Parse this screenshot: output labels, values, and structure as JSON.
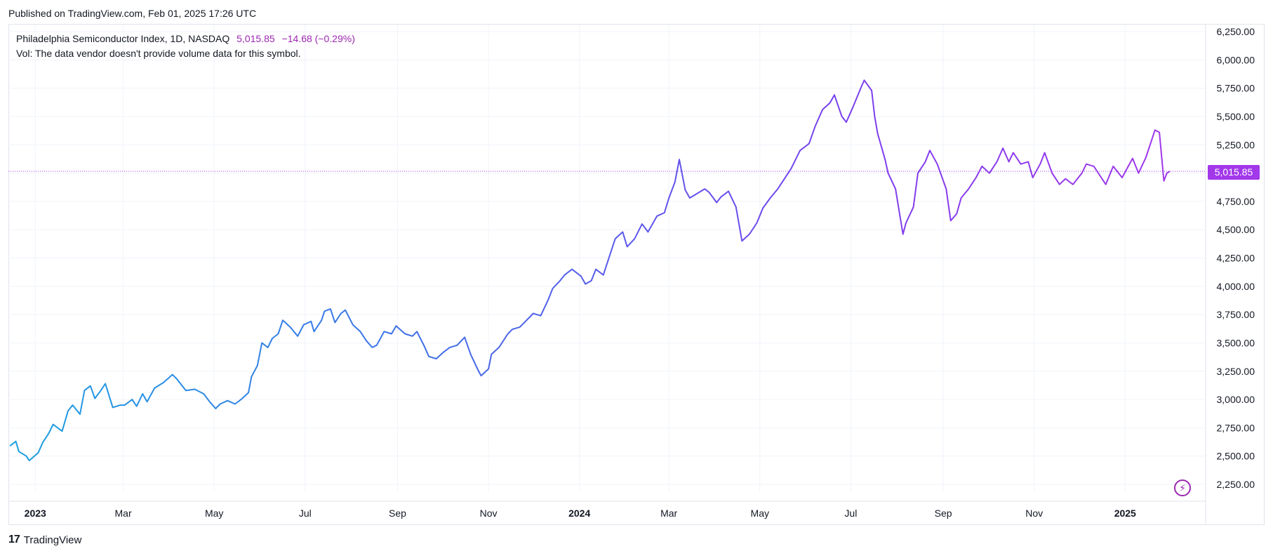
{
  "header": {
    "published": "Published on TradingView.com, Feb 01, 2025 17:26 UTC"
  },
  "legend": {
    "symbol": "Philadelphia Semiconductor Index, 1D, NASDAQ",
    "price": "5,015.85",
    "change": "−14.68 (−0.29%)",
    "vol": "Vol: The data vendor doesn't provide volume data for this symbol."
  },
  "price_badge": "5,015.85",
  "footer": {
    "logo": "17",
    "brand": "TradingView"
  },
  "icons": {
    "lightning": "lightning-icon"
  },
  "colors": {
    "line_start": "#1ca0e0",
    "line_mid": "#3f6fe8",
    "line_end": "#a238ea",
    "grid": "#f0f3fa",
    "last_price": "#a238ea"
  },
  "chart_data": {
    "type": "line",
    "title": "",
    "xlabel": "",
    "ylabel": "",
    "ylim": [
      2100,
      6350
    ],
    "y_ticks": [
      "6,250.00",
      "6,000.00",
      "5,750.00",
      "5,500.00",
      "5,250.00",
      "5,000.00",
      "4,750.00",
      "4,500.00",
      "4,250.00",
      "4,000.00",
      "3,750.00",
      "3,500.00",
      "3,250.00",
      "3,000.00",
      "2,750.00",
      "2,500.00",
      "2,250.00"
    ],
    "y_tick_values": [
      6250,
      6000,
      5750,
      5500,
      5250,
      5000,
      4750,
      4500,
      4250,
      4000,
      3750,
      3500,
      3250,
      3000,
      2750,
      2500,
      2250
    ],
    "x_ticks": [
      {
        "label": "2023",
        "date": "2023-01-01",
        "bold": true
      },
      {
        "label": "Mar",
        "date": "2023-03-01",
        "bold": false
      },
      {
        "label": "May",
        "date": "2023-05-01",
        "bold": false
      },
      {
        "label": "Jul",
        "date": "2023-07-01",
        "bold": false
      },
      {
        "label": "Sep",
        "date": "2023-09-01",
        "bold": false
      },
      {
        "label": "Nov",
        "date": "2023-11-01",
        "bold": false
      },
      {
        "label": "2024",
        "date": "2024-01-01",
        "bold": true
      },
      {
        "label": "Mar",
        "date": "2024-03-01",
        "bold": false
      },
      {
        "label": "May",
        "date": "2024-05-01",
        "bold": false
      },
      {
        "label": "Jul",
        "date": "2024-07-01",
        "bold": false
      },
      {
        "label": "Sep",
        "date": "2024-09-01",
        "bold": false
      },
      {
        "label": "Nov",
        "date": "2024-11-01",
        "bold": false
      },
      {
        "label": "2025",
        "date": "2025-01-01",
        "bold": true
      }
    ],
    "last_price": 5015.85,
    "series": [
      {
        "name": "Philadelphia Semiconductor Index",
        "points": [
          [
            "2022-12-15",
            2590
          ],
          [
            "2022-12-19",
            2630
          ],
          [
            "2022-12-21",
            2540
          ],
          [
            "2022-12-26",
            2500
          ],
          [
            "2022-12-28",
            2460
          ],
          [
            "2023-01-03",
            2530
          ],
          [
            "2023-01-06",
            2620
          ],
          [
            "2023-01-10",
            2700
          ],
          [
            "2023-01-13",
            2780
          ],
          [
            "2023-01-19",
            2720
          ],
          [
            "2023-01-23",
            2900
          ],
          [
            "2023-01-26",
            2950
          ],
          [
            "2023-01-31",
            2870
          ],
          [
            "2023-02-03",
            3080
          ],
          [
            "2023-02-07",
            3120
          ],
          [
            "2023-02-10",
            3010
          ],
          [
            "2023-02-14",
            3080
          ],
          [
            "2023-02-17",
            3140
          ],
          [
            "2023-02-22",
            2930
          ],
          [
            "2023-02-27",
            2950
          ],
          [
            "2023-03-02",
            2950
          ],
          [
            "2023-03-07",
            3000
          ],
          [
            "2023-03-10",
            2940
          ],
          [
            "2023-03-14",
            3050
          ],
          [
            "2023-03-17",
            2980
          ],
          [
            "2023-03-22",
            3100
          ],
          [
            "2023-03-28",
            3150
          ],
          [
            "2023-04-03",
            3220
          ],
          [
            "2023-04-06",
            3180
          ],
          [
            "2023-04-12",
            3080
          ],
          [
            "2023-04-18",
            3090
          ],
          [
            "2023-04-24",
            3050
          ],
          [
            "2023-04-28",
            2980
          ],
          [
            "2023-05-02",
            2920
          ],
          [
            "2023-05-05",
            2960
          ],
          [
            "2023-05-10",
            2990
          ],
          [
            "2023-05-15",
            2960
          ],
          [
            "2023-05-19",
            3000
          ],
          [
            "2023-05-24",
            3060
          ],
          [
            "2023-05-26",
            3200
          ],
          [
            "2023-05-30",
            3300
          ],
          [
            "2023-06-02",
            3500
          ],
          [
            "2023-06-06",
            3460
          ],
          [
            "2023-06-09",
            3540
          ],
          [
            "2023-06-13",
            3580
          ],
          [
            "2023-06-16",
            3700
          ],
          [
            "2023-06-21",
            3640
          ],
          [
            "2023-06-26",
            3560
          ],
          [
            "2023-06-30",
            3660
          ],
          [
            "2023-07-05",
            3690
          ],
          [
            "2023-07-07",
            3600
          ],
          [
            "2023-07-12",
            3700
          ],
          [
            "2023-07-14",
            3780
          ],
          [
            "2023-07-18",
            3800
          ],
          [
            "2023-07-21",
            3680
          ],
          [
            "2023-07-25",
            3760
          ],
          [
            "2023-07-28",
            3790
          ],
          [
            "2023-08-02",
            3660
          ],
          [
            "2023-08-07",
            3600
          ],
          [
            "2023-08-11",
            3520
          ],
          [
            "2023-08-15",
            3460
          ],
          [
            "2023-08-18",
            3480
          ],
          [
            "2023-08-23",
            3600
          ],
          [
            "2023-08-28",
            3580
          ],
          [
            "2023-08-31",
            3650
          ],
          [
            "2023-09-06",
            3580
          ],
          [
            "2023-09-11",
            3560
          ],
          [
            "2023-09-14",
            3600
          ],
          [
            "2023-09-19",
            3470
          ],
          [
            "2023-09-22",
            3380
          ],
          [
            "2023-09-27",
            3360
          ],
          [
            "2023-10-02",
            3420
          ],
          [
            "2023-10-06",
            3460
          ],
          [
            "2023-10-11",
            3480
          ],
          [
            "2023-10-16",
            3550
          ],
          [
            "2023-10-20",
            3400
          ],
          [
            "2023-10-25",
            3260
          ],
          [
            "2023-10-27",
            3210
          ],
          [
            "2023-11-01",
            3270
          ],
          [
            "2023-11-03",
            3400
          ],
          [
            "2023-11-08",
            3460
          ],
          [
            "2023-11-14",
            3580
          ],
          [
            "2023-11-17",
            3620
          ],
          [
            "2023-11-22",
            3640
          ],
          [
            "2023-11-28",
            3720
          ],
          [
            "2023-12-01",
            3760
          ],
          [
            "2023-12-06",
            3740
          ],
          [
            "2023-12-11",
            3880
          ],
          [
            "2023-12-14",
            3980
          ],
          [
            "2023-12-19",
            4050
          ],
          [
            "2023-12-22",
            4100
          ],
          [
            "2023-12-27",
            4150
          ],
          [
            "2024-01-02",
            4090
          ],
          [
            "2024-01-05",
            4020
          ],
          [
            "2024-01-09",
            4050
          ],
          [
            "2024-01-12",
            4150
          ],
          [
            "2024-01-17",
            4100
          ],
          [
            "2024-01-22",
            4300
          ],
          [
            "2024-01-25",
            4420
          ],
          [
            "2024-01-30",
            4480
          ],
          [
            "2024-02-02",
            4350
          ],
          [
            "2024-02-07",
            4420
          ],
          [
            "2024-02-12",
            4550
          ],
          [
            "2024-02-16",
            4480
          ],
          [
            "2024-02-22",
            4620
          ],
          [
            "2024-02-27",
            4650
          ],
          [
            "2024-03-01",
            4780
          ],
          [
            "2024-03-05",
            4920
          ],
          [
            "2024-03-08",
            5120
          ],
          [
            "2024-03-12",
            4850
          ],
          [
            "2024-03-15",
            4780
          ],
          [
            "2024-03-20",
            4820
          ],
          [
            "2024-03-25",
            4860
          ],
          [
            "2024-03-28",
            4830
          ],
          [
            "2024-04-02",
            4740
          ],
          [
            "2024-04-05",
            4790
          ],
          [
            "2024-04-10",
            4840
          ],
          [
            "2024-04-15",
            4700
          ],
          [
            "2024-04-19",
            4400
          ],
          [
            "2024-04-24",
            4460
          ],
          [
            "2024-04-29",
            4560
          ],
          [
            "2024-05-03",
            4690
          ],
          [
            "2024-05-08",
            4780
          ],
          [
            "2024-05-13",
            4860
          ],
          [
            "2024-05-17",
            4940
          ],
          [
            "2024-05-22",
            5040
          ],
          [
            "2024-05-28",
            5200
          ],
          [
            "2024-06-03",
            5260
          ],
          [
            "2024-06-07",
            5410
          ],
          [
            "2024-06-12",
            5560
          ],
          [
            "2024-06-17",
            5620
          ],
          [
            "2024-06-20",
            5690
          ],
          [
            "2024-06-25",
            5500
          ],
          [
            "2024-06-28",
            5450
          ],
          [
            "2024-07-03",
            5600
          ],
          [
            "2024-07-08",
            5760
          ],
          [
            "2024-07-10",
            5820
          ],
          [
            "2024-07-15",
            5730
          ],
          [
            "2024-07-17",
            5500
          ],
          [
            "2024-07-19",
            5350
          ],
          [
            "2024-07-24",
            5120
          ],
          [
            "2024-07-26",
            5000
          ],
          [
            "2024-07-31",
            4860
          ],
          [
            "2024-08-05",
            4460
          ],
          [
            "2024-08-07",
            4560
          ],
          [
            "2024-08-12",
            4700
          ],
          [
            "2024-08-15",
            5000
          ],
          [
            "2024-08-20",
            5100
          ],
          [
            "2024-08-23",
            5200
          ],
          [
            "2024-08-28",
            5080
          ],
          [
            "2024-09-03",
            4860
          ],
          [
            "2024-09-06",
            4580
          ],
          [
            "2024-09-10",
            4640
          ],
          [
            "2024-09-13",
            4780
          ],
          [
            "2024-09-18",
            4860
          ],
          [
            "2024-09-23",
            4960
          ],
          [
            "2024-09-27",
            5060
          ],
          [
            "2024-10-02",
            5000
          ],
          [
            "2024-10-07",
            5100
          ],
          [
            "2024-10-11",
            5220
          ],
          [
            "2024-10-15",
            5100
          ],
          [
            "2024-10-18",
            5180
          ],
          [
            "2024-10-23",
            5080
          ],
          [
            "2024-10-28",
            5100
          ],
          [
            "2024-10-31",
            4960
          ],
          [
            "2024-11-05",
            5080
          ],
          [
            "2024-11-08",
            5180
          ],
          [
            "2024-11-13",
            5000
          ],
          [
            "2024-11-18",
            4900
          ],
          [
            "2024-11-22",
            4950
          ],
          [
            "2024-11-27",
            4900
          ],
          [
            "2024-12-03",
            5000
          ],
          [
            "2024-12-06",
            5080
          ],
          [
            "2024-12-11",
            5060
          ],
          [
            "2024-12-16",
            4960
          ],
          [
            "2024-12-19",
            4900
          ],
          [
            "2024-12-24",
            5060
          ],
          [
            "2024-12-30",
            4960
          ],
          [
            "2025-01-06",
            5130
          ],
          [
            "2025-01-10",
            5000
          ],
          [
            "2025-01-15",
            5140
          ],
          [
            "2025-01-21",
            5380
          ],
          [
            "2025-01-24",
            5360
          ],
          [
            "2025-01-27",
            4930
          ],
          [
            "2025-01-29",
            5000
          ],
          [
            "2025-01-31",
            5015.85
          ]
        ]
      }
    ]
  }
}
